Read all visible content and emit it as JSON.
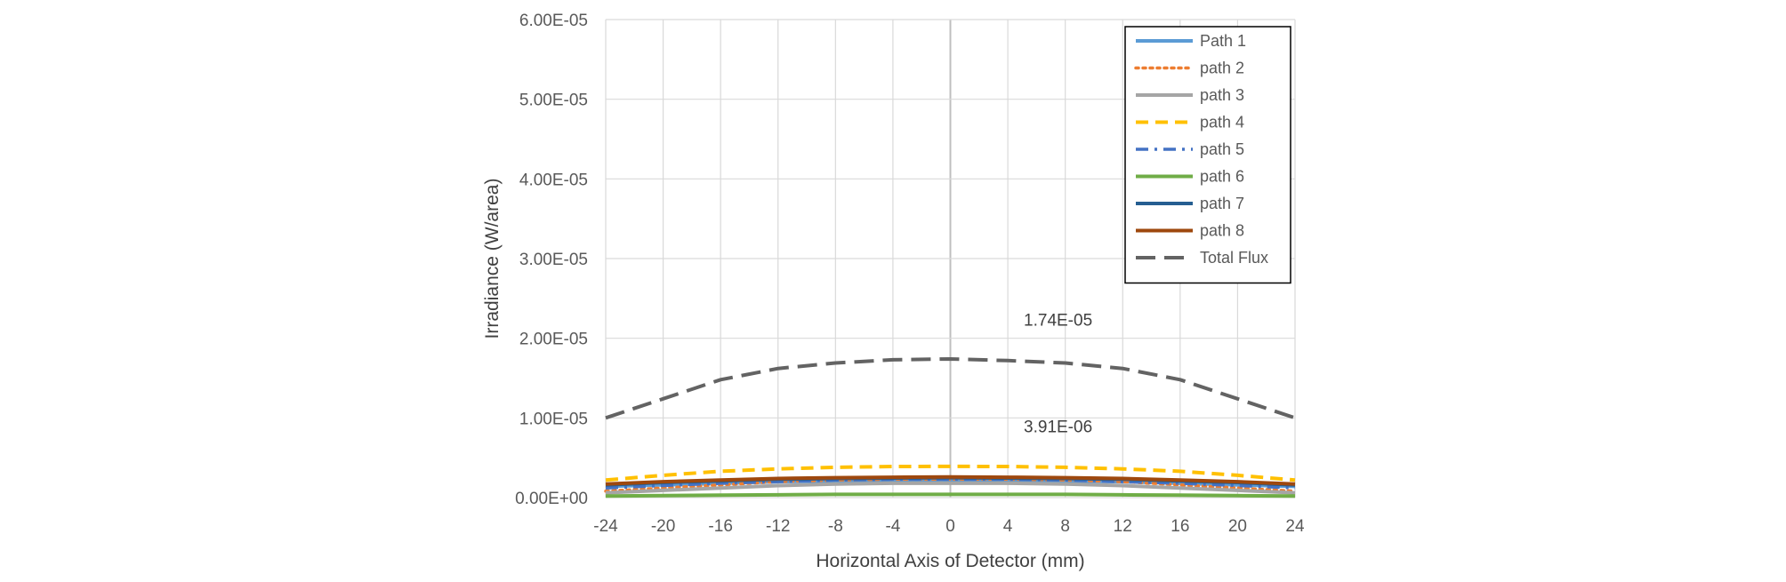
{
  "chart_data": {
    "type": "line",
    "title": "",
    "xlabel": "Horizontal Axis of Detector (mm)",
    "ylabel": "Irradiance (W/area)",
    "xlim": [
      -24,
      24
    ],
    "ylim": [
      0,
      6e-05
    ],
    "x_ticks": [
      "-24",
      "-20",
      "-16",
      "-12",
      "-8",
      "-4",
      "0",
      "4",
      "8",
      "12",
      "16",
      "20",
      "24"
    ],
    "y_ticks": [
      "0.00E+00",
      "1.00E-05",
      "2.00E-05",
      "3.00E-05",
      "4.00E-05",
      "5.00E-05",
      "6.00E-05"
    ],
    "grid": true,
    "legend_position": "top-right",
    "annotations": [
      {
        "text": "1.74E-05",
        "x": 7.5,
        "y": 2.16e-05
      },
      {
        "text": "3.91E-06",
        "x": 7.5,
        "y": 8.2e-06
      }
    ],
    "x": [
      -24,
      -20,
      -16,
      -12,
      -8,
      -4,
      0,
      4,
      8,
      12,
      16,
      20,
      24
    ],
    "series": [
      {
        "name": "Path 1",
        "color": "#5B9BD5",
        "dash": "solid",
        "values": [
          1.4e-06,
          1.6e-06,
          1.8e-06,
          2e-06,
          2.1e-06,
          2.15e-06,
          2.2e-06,
          2.15e-06,
          2.1e-06,
          2e-06,
          1.8e-06,
          1.6e-06,
          1.4e-06
        ]
      },
      {
        "name": "path 2",
        "color": "#ED7D31",
        "dash": "dot",
        "values": [
          8e-07,
          1.2e-06,
          1.6e-06,
          2e-06,
          2.2e-06,
          2.3e-06,
          2.3e-06,
          2.3e-06,
          2.2e-06,
          2e-06,
          1.6e-06,
          1.2e-06,
          8e-07
        ]
      },
      {
        "name": "path 3",
        "color": "#A5A5A5",
        "dash": "solid",
        "values": [
          6e-07,
          9e-07,
          1.2e-06,
          1.5e-06,
          1.7e-06,
          1.8e-06,
          1.8e-06,
          1.8e-06,
          1.7e-06,
          1.5e-06,
          1.2e-06,
          9e-07,
          6e-07
        ]
      },
      {
        "name": "path 4",
        "color": "#FFC000",
        "dash": "dash",
        "values": [
          2.2e-06,
          2.8e-06,
          3.3e-06,
          3.6e-06,
          3.8e-06,
          3.9e-06,
          3.91e-06,
          3.9e-06,
          3.8e-06,
          3.6e-06,
          3.3e-06,
          2.8e-06,
          2.2e-06
        ]
      },
      {
        "name": "path 5",
        "color": "#4472C4",
        "dash": "dashdot",
        "values": [
          1.2e-06,
          1.5e-06,
          1.8e-06,
          2e-06,
          2.2e-06,
          2.3e-06,
          2.3e-06,
          2.3e-06,
          2.2e-06,
          2e-06,
          1.8e-06,
          1.5e-06,
          1.2e-06
        ]
      },
      {
        "name": "path 6",
        "color": "#70AD47",
        "dash": "solid",
        "values": [
          2e-07,
          2.5e-07,
          3e-07,
          3.5e-07,
          4e-07,
          4e-07,
          4e-07,
          4e-07,
          4e-07,
          3.5e-07,
          3e-07,
          2.5e-07,
          2e-07
        ]
      },
      {
        "name": "path 7",
        "color": "#255E91",
        "dash": "solid",
        "values": [
          1.6e-06,
          1.9e-06,
          2.1e-06,
          2.3e-06,
          2.4e-06,
          2.45e-06,
          2.5e-06,
          2.45e-06,
          2.4e-06,
          2.3e-06,
          2.1e-06,
          1.9e-06,
          1.6e-06
        ]
      },
      {
        "name": "path 8",
        "color": "#9E480E",
        "dash": "solid",
        "values": [
          1.7e-06,
          2e-06,
          2.2e-06,
          2.4e-06,
          2.5e-06,
          2.55e-06,
          2.6e-06,
          2.55e-06,
          2.5e-06,
          2.4e-06,
          2.2e-06,
          2e-06,
          1.7e-06
        ]
      },
      {
        "name": "Total Flux",
        "color": "#636363",
        "dash": "longdash",
        "values": [
          1e-05,
          1.24e-05,
          1.48e-05,
          1.62e-05,
          1.69e-05,
          1.73e-05,
          1.74e-05,
          1.72e-05,
          1.69e-05,
          1.62e-05,
          1.48e-05,
          1.24e-05,
          1e-05
        ]
      }
    ]
  }
}
